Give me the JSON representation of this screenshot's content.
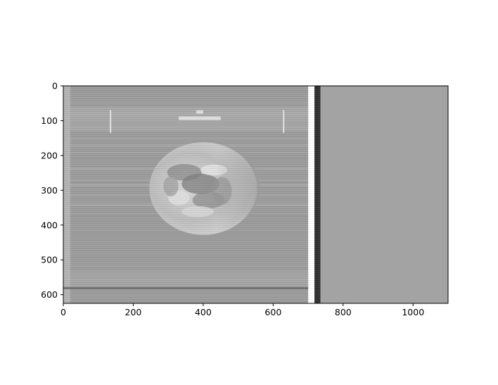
{
  "chart_data": {
    "type": "image",
    "title": "",
    "xlabel": "",
    "ylabel": "",
    "xlim": [
      0,
      1100
    ],
    "ylim": [
      625,
      0
    ],
    "y_axis_inverted": true,
    "grid": false,
    "legend": "none",
    "x_ticks": [
      0,
      200,
      400,
      600,
      800,
      1000
    ],
    "y_ticks": [
      0,
      100,
      200,
      300,
      400,
      500,
      600
    ],
    "image_content": {
      "subject": "grayscale photograph of Earth (satellite image) with horizontal scan-line streaks",
      "earth_center": [
        400,
        295
      ],
      "earth_radius": 140,
      "dark_vertical_band_x": [
        700,
        735
      ],
      "uniform_background_from_x": 735,
      "colors": {
        "image_background": "#9c9c9c",
        "uniform_region": "#a3a3a3",
        "dark_band": "#2f2f2f",
        "axes_frame": "#000000"
      }
    }
  }
}
